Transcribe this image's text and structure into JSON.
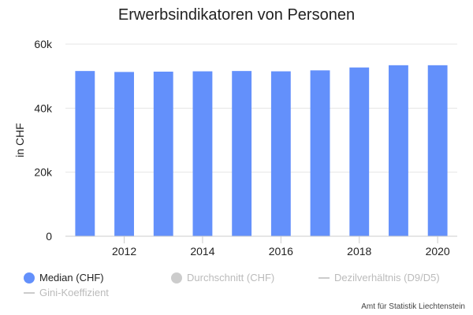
{
  "title": "Erwerbsindikatoren von Personen",
  "credits": "Amt für Statistik Liechtenstein",
  "legend": [
    {
      "label": "Median (CHF)",
      "marker": "dot",
      "color": "#6390fb",
      "active": true
    },
    {
      "label": "Durchschnitt (CHF)",
      "marker": "dot",
      "color": "#cccccc",
      "active": false
    },
    {
      "label": "Dezilverhältnis (D9/D5)",
      "marker": "line",
      "color": "#cccccc",
      "active": false
    },
    {
      "label": "Gini-Koeffizient",
      "marker": "line",
      "color": "#cccccc",
      "active": false
    }
  ],
  "chart_data": {
    "type": "bar",
    "title": "Erwerbsindikatoren von Personen",
    "xlabel": "",
    "ylabel": "in CHF",
    "x": [
      2011,
      2012,
      2013,
      2014,
      2015,
      2016,
      2017,
      2018,
      2019,
      2020
    ],
    "x_ticks": [
      "2012",
      "2014",
      "2016",
      "2018",
      "2020"
    ],
    "y_ticks": [
      "0",
      "20k",
      "40k",
      "60k"
    ],
    "ylim": [
      0,
      60000
    ],
    "grid": true,
    "legend_position": "bottom",
    "series": [
      {
        "name": "Median (CHF)",
        "color": "#6390fb",
        "values": [
          51600,
          51300,
          51400,
          51500,
          51600,
          51500,
          51800,
          52700,
          53400,
          53400
        ]
      }
    ]
  }
}
